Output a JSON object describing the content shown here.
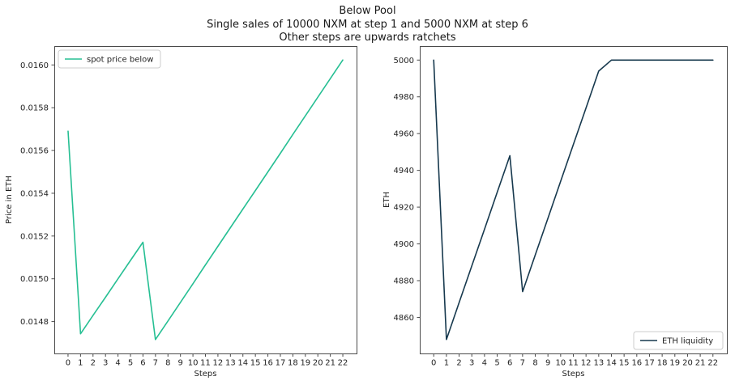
{
  "figure_title": {
    "line1": "Below Pool",
    "line2": "Single sales of 10000 NXM at step 1 and 5000 NXM at step 6",
    "line3": "Other steps are upwards ratchets"
  },
  "colors": {
    "spot_price_line": "#26bf93",
    "eth_liquidity_line": "#17394e",
    "spine": "#4a4a4a",
    "text": "#1f1f1f",
    "legend_border": "#cccccc",
    "background": "#ffffff"
  },
  "chart_data": [
    {
      "id": "spot-price-chart",
      "type": "line",
      "xlabel": "Steps",
      "ylabel": "Price in ETH",
      "legend": {
        "label": "spot price below",
        "loc": "upper left"
      },
      "line_color": "#26bf93",
      "grid": false,
      "x": [
        0,
        1,
        2,
        3,
        4,
        5,
        6,
        7,
        8,
        9,
        10,
        11,
        12,
        13,
        14,
        15,
        16,
        17,
        18,
        19,
        20,
        21,
        22
      ],
      "y": [
        0.01569,
        0.014743,
        0.014829,
        0.014914,
        0.015,
        0.015086,
        0.015171,
        0.014716,
        0.014803,
        0.01489,
        0.014977,
        0.015065,
        0.015152,
        0.015239,
        0.015326,
        0.015413,
        0.0155,
        0.015587,
        0.015675,
        0.015762,
        0.015849,
        0.015936,
        0.016023
      ],
      "xticks": [
        0,
        1,
        2,
        3,
        4,
        5,
        6,
        7,
        8,
        9,
        10,
        11,
        12,
        13,
        14,
        15,
        16,
        17,
        18,
        19,
        20,
        21,
        22
      ],
      "yticks": [
        0.0148,
        0.015,
        0.0152,
        0.0154,
        0.0156,
        0.0158,
        0.016
      ],
      "ytick_labels": [
        "0.0148",
        "0.0150",
        "0.0152",
        "0.0154",
        "0.0156",
        "0.0158",
        "0.0160"
      ],
      "xlim": [
        -1.1,
        23.1
      ],
      "ylim": [
        0.014651,
        0.016088
      ]
    },
    {
      "id": "eth-liquidity-chart",
      "type": "line",
      "xlabel": "Steps",
      "ylabel": "ETH",
      "legend": {
        "label": "ETH liquidity",
        "loc": "lower right"
      },
      "line_color": "#17394e",
      "grid": false,
      "x": [
        0,
        1,
        2,
        3,
        4,
        5,
        6,
        7,
        8,
        9,
        10,
        11,
        12,
        13,
        14,
        15,
        16,
        17,
        18,
        19,
        20,
        21,
        22
      ],
      "y": [
        5000,
        4848,
        4868,
        4888,
        4908,
        4928,
        4948,
        4874,
        4894,
        4914,
        4934,
        4954,
        4974,
        4994,
        5000,
        5000,
        5000,
        5000,
        5000,
        5000,
        5000,
        5000,
        5000
      ],
      "xticks": [
        0,
        1,
        2,
        3,
        4,
        5,
        6,
        7,
        8,
        9,
        10,
        11,
        12,
        13,
        14,
        15,
        16,
        17,
        18,
        19,
        20,
        21,
        22
      ],
      "yticks": [
        4860,
        4880,
        4900,
        4920,
        4940,
        4960,
        4980,
        5000
      ],
      "ytick_labels": [
        "4860",
        "4880",
        "4900",
        "4920",
        "4940",
        "4960",
        "4980",
        "5000"
      ],
      "xlim": [
        -1.1,
        23.1
      ],
      "ylim": [
        4840.4,
        5007.6
      ]
    }
  ]
}
